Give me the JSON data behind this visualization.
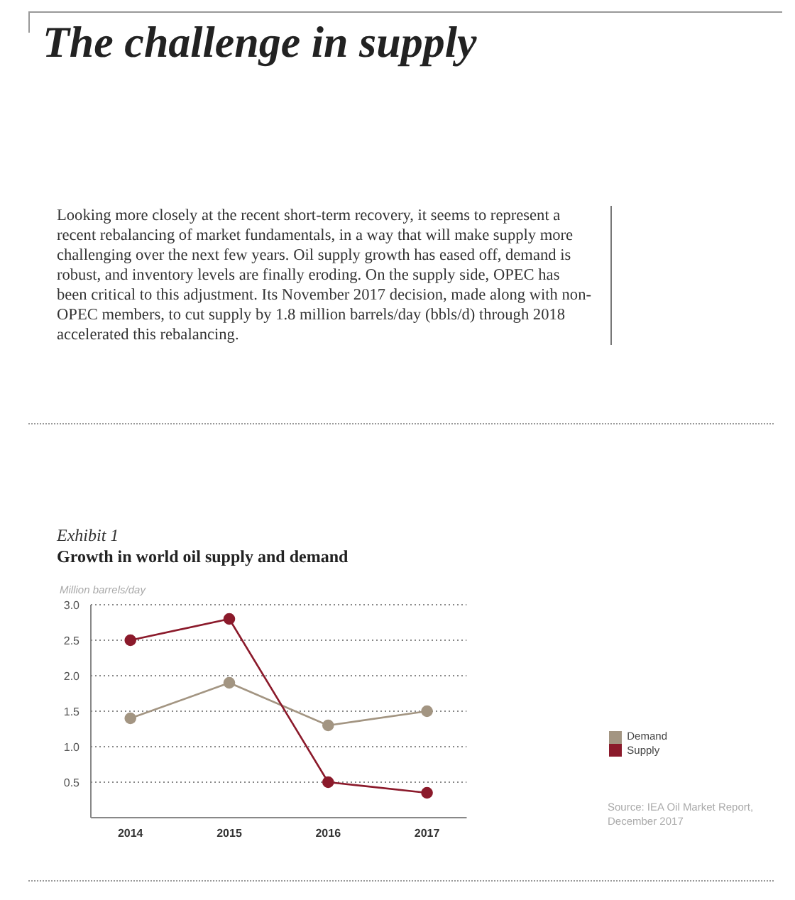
{
  "chart_data": {
    "type": "line",
    "title": "The challenge in supply",
    "subtitle": "Growth in world oil supply and demand",
    "ylabel": "Million barrels/day",
    "annotations": [
      "Looking more closely at the recent short-term recovery, it seems to represent a recent rebalancing of market fundamentals, in a way that will make supply more challenging over the next few years. Oil supply growth has eased off, demand is robust, and inventory levels are finally eroding. On the supply side, OPEC has been critical to this adjustment. Its November 2017 decision, made along with non-OPEC members, to cut supply by 1.8 million barrels/day (bbls/d) through 2018 accelerated this rebalancing.",
      "Exhibit 1",
      "Source: IEA Oil Market Report, December 2017"
    ],
    "categories": [
      "2014",
      "2015",
      "2016",
      "2017"
    ],
    "series": [
      {
        "name": "Demand",
        "color": "#a39582",
        "values": [
          1.4,
          1.9,
          1.3,
          1.5
        ]
      },
      {
        "name": "Supply",
        "color": "#8b1a2b",
        "values": [
          2.5,
          2.8,
          0.5,
          0.35
        ]
      }
    ],
    "ylim": [
      0,
      3
    ],
    "yticks": [
      0.5,
      {
        "value": 1,
        "label": "1.0"
      },
      1.5,
      {
        "value": 2,
        "label": "2.0"
      },
      2.5,
      {
        "value": 3,
        "label": "3.0"
      }
    ],
    "grid": "y",
    "legend": "right",
    "marker": "circle",
    "line_style": "solid"
  }
}
